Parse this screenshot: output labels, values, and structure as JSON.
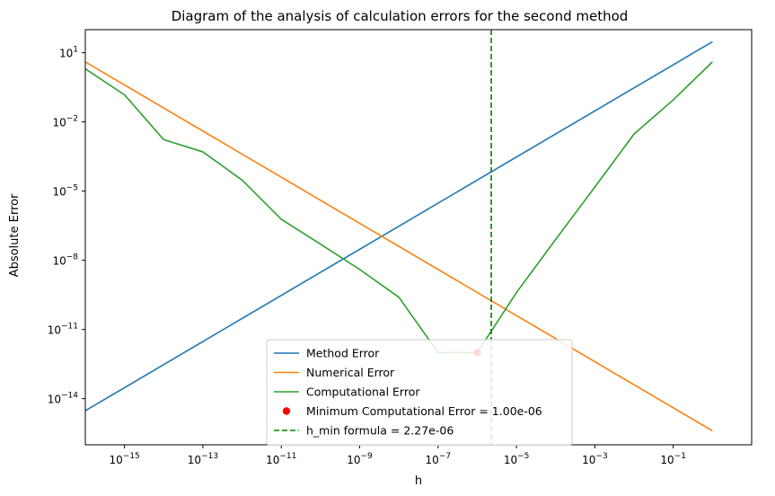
{
  "chart_data": {
    "type": "line",
    "title": "Diagram of the analysis of calculation errors for the second method",
    "xlabel": "h",
    "ylabel": "Absolute Error",
    "xscale": "log",
    "yscale": "log",
    "xlim": [
      1e-16,
      10
    ],
    "ylim": [
      1e-16,
      100
    ],
    "x_ticks": [
      {
        "exp": "−15",
        "value": 1e-15
      },
      {
        "exp": "−13",
        "value": 1e-13
      },
      {
        "exp": "−11",
        "value": 1e-11
      },
      {
        "exp": "−9",
        "value": 1e-09
      },
      {
        "exp": "−7",
        "value": 1e-07
      },
      {
        "exp": "−5",
        "value": 1e-05
      },
      {
        "exp": "−3",
        "value": 0.001
      },
      {
        "exp": "−1",
        "value": 0.1
      }
    ],
    "y_ticks": [
      {
        "exp": "1",
        "value": 10
      },
      {
        "exp": "−2",
        "value": 0.01
      },
      {
        "exp": "−5",
        "value": 1e-05
      },
      {
        "exp": "−8",
        "value": 1e-08
      },
      {
        "exp": "−11",
        "value": 1e-11
      },
      {
        "exp": "−14",
        "value": 1e-14
      }
    ],
    "series": [
      {
        "name": "Method Error",
        "color": "#1f77b4",
        "x": [
          1e-16,
          1
        ],
        "y": [
          3e-15,
          30
        ]
      },
      {
        "name": "Numerical Error",
        "color": "#ff7f0e",
        "x": [
          1e-16,
          1
        ],
        "y": [
          4,
          4e-16
        ]
      },
      {
        "name": "Computational Error",
        "color": "#2ca02c",
        "x": [
          1e-16,
          1e-15,
          1e-14,
          1e-13,
          1e-12,
          1e-11,
          1e-10,
          1e-09,
          1e-08,
          1e-07,
          1e-06,
          1e-05,
          0.0001,
          0.001,
          0.01,
          0.1,
          1
        ],
        "y": [
          2,
          0.15,
          0.0017,
          0.0005,
          3e-05,
          6e-07,
          5e-08,
          4e-09,
          2.5e-10,
          1e-12,
          1e-12,
          4e-10,
          8e-08,
          1.5e-05,
          0.003,
          0.09,
          4
        ]
      }
    ],
    "markers": [
      {
        "name": "Minimum Computational Error = 1.00e-06",
        "color": "#ff0000",
        "x": 1e-06,
        "y": 1e-12
      }
    ],
    "vlines": [
      {
        "name": "h_min formula = 2.27e-06",
        "color": "#008000",
        "style": "dashed",
        "x": 2.27e-06
      }
    ],
    "legend_position": "lower-center",
    "grid": false
  }
}
